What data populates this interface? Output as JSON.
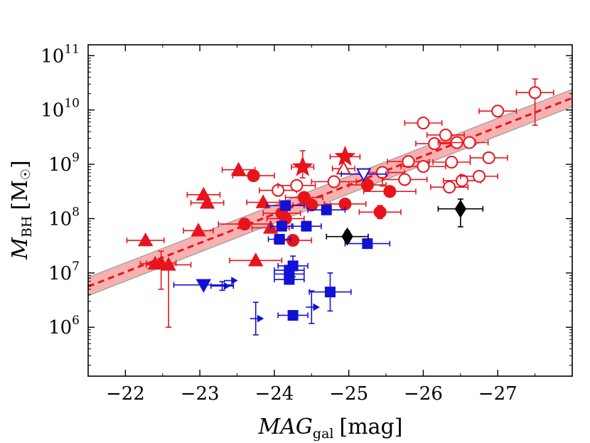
{
  "chart_data": {
    "type": "scatter",
    "xlabel": "MAG_gal [mag]",
    "xlabel_main": "MAG",
    "xlabel_sub": "gal",
    "xlabel_unit": "[mag]",
    "ylabel": "M_BH [M_sun]",
    "ylabel_main": "M",
    "ylabel_sub": "BH",
    "ylabel_unit": "[M",
    "ylabel_unit_close": "]",
    "x_axis_inverted": true,
    "xlim": [
      -21.5,
      -28.0
    ],
    "ylim_log10": [
      5.1,
      11.2
    ],
    "y_scale": "log",
    "grid": false,
    "xticks": [
      {
        "value": -22,
        "label": "−22"
      },
      {
        "value": -23,
        "label": "−23"
      },
      {
        "value": -24,
        "label": "−24"
      },
      {
        "value": -25,
        "label": "−25"
      },
      {
        "value": -26,
        "label": "−26"
      },
      {
        "value": -27,
        "label": "−27"
      }
    ],
    "yticks": [
      {
        "log10": 6,
        "base": "10",
        "exp": "6"
      },
      {
        "log10": 7,
        "base": "10",
        "exp": "7"
      },
      {
        "log10": 8,
        "base": "10",
        "exp": "8"
      },
      {
        "log10": 9,
        "base": "10",
        "exp": "9"
      },
      {
        "log10": 10,
        "base": "10",
        "exp": "10"
      },
      {
        "log10": 11,
        "base": "10",
        "exp": "11"
      }
    ],
    "fit": {
      "line_color": "#e8141c",
      "band_color": "#f6a3a3",
      "x_range": [
        -21.5,
        -28.0
      ],
      "center_log10": [
        6.75,
        10.22
      ],
      "band_halfwidth_log10": [
        0.17,
        0.16
      ]
    },
    "colors": {
      "red": "#e8141c",
      "blue": "#1111d6",
      "black": "#000000"
    },
    "series": [
      {
        "marker": "triangle",
        "color": "#e8141c",
        "fill": true,
        "points": [
          {
            "x": -22.27,
            "y": 7.6,
            "xerr": 0.25,
            "yerr": 0
          },
          {
            "x": -22.4,
            "y": 7.17,
            "xerr": 0.2,
            "yerr": 0
          },
          {
            "x": -22.48,
            "y": 7.18,
            "xerr": 0.2,
            "yerr": [
              0.48,
              0.22
            ]
          },
          {
            "x": -22.58,
            "y": 7.15,
            "xerr": 0.3,
            "yerr": [
              1.15,
              0
            ]
          },
          {
            "x": -22.98,
            "y": 7.78,
            "xerr": 0.2,
            "yerr": 0
          },
          {
            "x": -23.05,
            "y": 8.44,
            "xerr": 0.22,
            "yerr": 0
          },
          {
            "x": -23.1,
            "y": 8.29,
            "xerr": 0.22,
            "yerr": 0
          },
          {
            "x": -23.52,
            "y": 8.9,
            "xerr": 0.22,
            "yerr": 0
          },
          {
            "x": -23.85,
            "y": 8.3,
            "xerr": 0.22,
            "yerr": 0
          },
          {
            "x": -23.95,
            "y": 7.83,
            "xerr": 0.25,
            "yerr": 0
          },
          {
            "x": -23.75,
            "y": 7.23,
            "xerr": 0.35,
            "yerr": 0
          }
        ]
      },
      {
        "marker": "circle",
        "color": "#e8141c",
        "fill": true,
        "points": [
          {
            "x": -23.6,
            "y": 7.9,
            "xerr": 0.35,
            "yerr": 0
          },
          {
            "x": -23.72,
            "y": 8.79,
            "xerr": 0.28,
            "yerr": 0
          },
          {
            "x": -24.1,
            "y": 8.1,
            "xerr": 0.25,
            "yerr": 0
          },
          {
            "x": -24.15,
            "y": 8.0,
            "xerr": 0.25,
            "yerr": 0
          },
          {
            "x": -24.25,
            "y": 7.6,
            "xerr": 0.25,
            "yerr": 0
          },
          {
            "x": -24.4,
            "y": 8.39,
            "xerr": 0.25,
            "yerr": 0
          },
          {
            "x": -24.5,
            "y": 8.25,
            "xerr": 0.25,
            "yerr": 0
          },
          {
            "x": -24.95,
            "y": 8.27,
            "xerr": 0.28,
            "yerr": 0
          },
          {
            "x": -25.25,
            "y": 8.62,
            "xerr": 0.25,
            "yerr": 0
          },
          {
            "x": -25.42,
            "y": 8.12,
            "xerr": 0.28,
            "yerr": [
              0.12,
              0.12
            ]
          },
          {
            "x": -25.55,
            "y": 8.5,
            "xerr": 0.35,
            "yerr": 0
          }
        ]
      },
      {
        "marker": "circle",
        "color": "#e8141c",
        "fill": false,
        "points": [
          {
            "x": -24.05,
            "y": 8.52,
            "xerr": 0.25,
            "yerr": 0
          },
          {
            "x": -24.3,
            "y": 8.61,
            "xerr": 0.25,
            "yerr": 0
          },
          {
            "x": -24.8,
            "y": 8.68,
            "xerr": 0.3,
            "yerr": 0
          },
          {
            "x": -25.45,
            "y": 8.85,
            "xerr": 0.3,
            "yerr": [
              0.25,
              0.1
            ]
          },
          {
            "x": -25.75,
            "y": 8.72,
            "xerr": 0.3,
            "yerr": 0
          },
          {
            "x": -25.8,
            "y": 9.05,
            "xerr": 0.28,
            "yerr": 0
          },
          {
            "x": -26.0,
            "y": 8.96,
            "xerr": 0.3,
            "yerr": 0
          },
          {
            "x": -26.0,
            "y": 9.76,
            "xerr": 0.25,
            "yerr": 0
          },
          {
            "x": -26.15,
            "y": 9.38,
            "xerr": 0.25,
            "yerr": 0
          },
          {
            "x": -26.3,
            "y": 9.54,
            "xerr": 0.25,
            "yerr": 0
          },
          {
            "x": -26.35,
            "y": 8.58,
            "xerr": 0.25,
            "yerr": 0
          },
          {
            "x": -26.38,
            "y": 9.04,
            "xerr": 0.25,
            "yerr": 0
          },
          {
            "x": -26.45,
            "y": 9.4,
            "xerr": 0.25,
            "yerr": 0
          },
          {
            "x": -26.52,
            "y": 8.7,
            "xerr": 0.25,
            "yerr": 0
          },
          {
            "x": -26.62,
            "y": 9.4,
            "xerr": 0.25,
            "yerr": 0
          },
          {
            "x": -26.75,
            "y": 8.78,
            "xerr": 0.25,
            "yerr": 0
          },
          {
            "x": -26.88,
            "y": 9.12,
            "xerr": 0.25,
            "yerr": 0
          },
          {
            "x": -27.0,
            "y": 9.98,
            "xerr": 0.25,
            "yerr": 0
          },
          {
            "x": -27.5,
            "y": 10.32,
            "xerr": 0.25,
            "yerr": [
              0.6,
              0.25
            ]
          }
        ]
      },
      {
        "marker": "star",
        "color": "#e8141c",
        "fill": true,
        "points": [
          {
            "x": -24.38,
            "y": 8.95,
            "xerr": 0.15,
            "yerr": [
              0.2,
              0.3
            ]
          },
          {
            "x": -24.95,
            "y": 9.14,
            "xerr": 0.2,
            "yerr": 0
          }
        ]
      },
      {
        "marker": "triangle",
        "color": "#e8141c",
        "fill": false,
        "points": [
          {
            "x": -24.93,
            "y": 8.92,
            "xerr": 0.15,
            "yerr": 0
          }
        ]
      },
      {
        "marker": "triangle-down",
        "color": "#1111d6",
        "fill": false,
        "points": [
          {
            "x": -25.2,
            "y": 8.82,
            "xerr": 0.3,
            "yerr": 0
          }
        ]
      },
      {
        "marker": "square",
        "color": "#1111d6",
        "fill": true,
        "points": [
          {
            "x": -24.07,
            "y": 7.62,
            "xerr": 0.15,
            "yerr": 0
          },
          {
            "x": -24.1,
            "y": 7.86,
            "xerr": 0.15,
            "yerr": 0
          },
          {
            "x": -24.15,
            "y": 8.24,
            "xerr": 0.25,
            "yerr": 0
          },
          {
            "x": -24.2,
            "y": 7.05,
            "xerr": 0.2,
            "yerr": 0
          },
          {
            "x": -24.2,
            "y": 6.98,
            "xerr": 0.2,
            "yerr": 0
          },
          {
            "x": -24.2,
            "y": 6.88,
            "xerr": 0.2,
            "yerr": 0
          },
          {
            "x": -24.25,
            "y": 7.13,
            "xerr": 0.2,
            "yerr": [
              0.2,
              0.18
            ]
          },
          {
            "x": -24.25,
            "y": 6.22,
            "xerr": 0.2,
            "yerr": 0
          },
          {
            "x": -24.43,
            "y": 7.86,
            "xerr": 0.2,
            "yerr": 0
          },
          {
            "x": -24.7,
            "y": 8.16,
            "xerr": 0.25,
            "yerr": 0
          },
          {
            "x": -24.75,
            "y": 6.65,
            "xerr": 0.28,
            "yerr": [
              0.35,
              0.35
            ]
          },
          {
            "x": -25.25,
            "y": 7.54,
            "xerr": 0.3,
            "yerr": 0
          }
        ]
      },
      {
        "marker": "triangle-down",
        "color": "#1111d6",
        "fill": true,
        "points": [
          {
            "x": -23.05,
            "y": 6.78,
            "xerr": 0.4,
            "yerr": 0
          }
        ]
      },
      {
        "marker": "arrow-right",
        "color": "#1111d6",
        "fill": true,
        "points": [
          {
            "x": -23.3,
            "y": 6.76,
            "xerr": 0.15,
            "yerr": [
              0.08,
              0.08
            ]
          },
          {
            "x": -23.4,
            "y": 6.86,
            "xerr": 0,
            "yerr": 0
          },
          {
            "x": -23.75,
            "y": 6.16,
            "xerr": 0,
            "yerr": [
              0.3,
              0.3
            ]
          },
          {
            "x": -24.5,
            "y": 6.37,
            "xerr": 0,
            "yerr": [
              0.3,
              0.3
            ]
          }
        ]
      },
      {
        "marker": "diamond",
        "color": "#000000",
        "fill": true,
        "points": [
          {
            "x": -24.98,
            "y": 7.67,
            "xerr": 0.28,
            "yerr": [
              0.1,
              0.1
            ]
          },
          {
            "x": -26.5,
            "y": 8.18,
            "xerr": 0.3,
            "yerr": [
              0.33,
              0.18
            ]
          }
        ]
      }
    ]
  }
}
